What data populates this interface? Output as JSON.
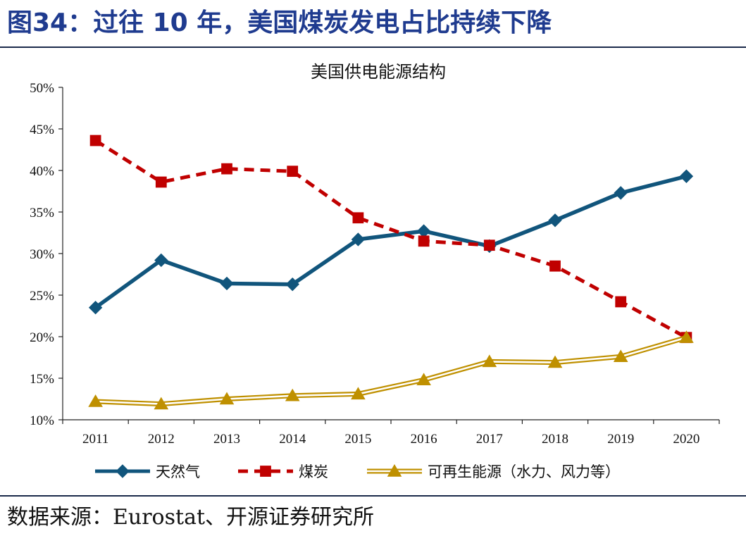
{
  "figure_title": "图34：过往 10 年，美国煤炭发电占比持续下降",
  "source_note": "数据来源：Eurostat、开源证券研究所",
  "colors": {
    "natural_gas": "#11557c",
    "coal": "#c00000",
    "renewable": "#bf9000",
    "title": "#1f3b8f"
  },
  "chart_data": {
    "type": "line",
    "title": "美国供电能源结构",
    "xlabel": "",
    "ylabel": "",
    "ylim": [
      0.1,
      0.5
    ],
    "ytick_step": 0.05,
    "ytick_labels": [
      "10%",
      "15%",
      "20%",
      "25%",
      "30%",
      "35%",
      "40%",
      "45%",
      "50%"
    ],
    "grid": false,
    "legend_position": "bottom",
    "categories": [
      "2011",
      "2012",
      "2013",
      "2014",
      "2015",
      "2016",
      "2017",
      "2018",
      "2019",
      "2020"
    ],
    "series": [
      {
        "key": "natural_gas",
        "name": "天然气",
        "style": "solid",
        "marker": "diamond",
        "values": [
          0.235,
          0.292,
          0.264,
          0.263,
          0.317,
          0.327,
          0.309,
          0.34,
          0.373,
          0.393
        ]
      },
      {
        "key": "coal",
        "name": "煤炭",
        "style": "dashed",
        "marker": "square",
        "values": [
          0.436,
          0.386,
          0.402,
          0.399,
          0.343,
          0.315,
          0.31,
          0.285,
          0.242,
          0.199
        ]
      },
      {
        "key": "renewable",
        "name": "可再生能源（水力、风力等）",
        "style": "double",
        "marker": "triangle",
        "values": [
          0.122,
          0.119,
          0.125,
          0.129,
          0.131,
          0.148,
          0.17,
          0.169,
          0.176,
          0.199
        ]
      }
    ]
  }
}
